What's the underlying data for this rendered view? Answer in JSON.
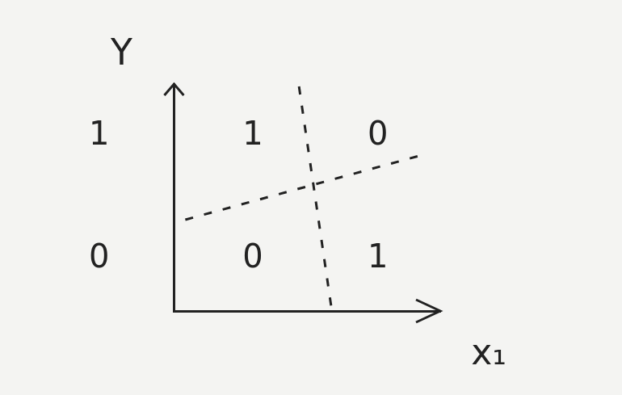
{
  "chart_data": {
    "type": "scatter",
    "x_label": "x₁",
    "y_label": "Y",
    "xlim": [
      -0.63,
      1.5
    ],
    "ylim": [
      -0.42,
      1.42
    ],
    "xticks": [],
    "yticks": [
      0,
      1
    ],
    "tick_labels": "y",
    "grid": false,
    "series": [
      {
        "type": "scatter",
        "marker": "text",
        "x": [
          0,
          1,
          0,
          1
        ],
        "values": [
          1,
          1,
          0,
          0
        ],
        "point_labels": [
          "1",
          "0",
          "0",
          "1"
        ],
        "color": "#222222"
      },
      {
        "type": "line",
        "line_style": "dashed",
        "x": [
          -0.54,
          1.34
        ],
        "values": [
          0.32,
          0.84
        ],
        "color": "#222222"
      },
      {
        "type": "line",
        "line_style": "dashed",
        "x": [
          0.37,
          0.63
        ],
        "values": [
          1.4,
          -0.4
        ],
        "color": "#222222"
      }
    ]
  }
}
